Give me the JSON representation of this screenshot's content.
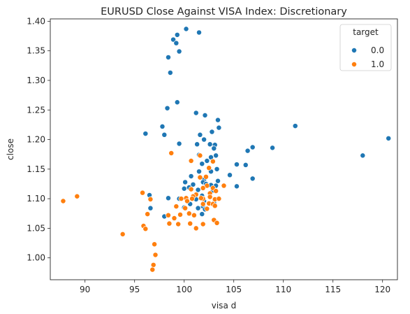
{
  "chart_data": {
    "type": "scatter",
    "title": "EURUSD Close Against VISA Index: Discretionary",
    "xlabel": "visa d",
    "ylabel": "close",
    "xlim": [
      86.5,
      121.5
    ],
    "ylim": [
      0.963,
      1.404
    ],
    "xticks": [
      90,
      95,
      100,
      105,
      110,
      115,
      120
    ],
    "yticks": [
      1.0,
      1.05,
      1.1,
      1.15,
      1.2,
      1.25,
      1.3,
      1.35,
      1.4
    ],
    "grid": false,
    "legend": {
      "title": "target",
      "position": "top-right"
    },
    "series": [
      {
        "name": "0.0",
        "color": "#1f77b4",
        "points": [
          [
            100.2,
            1.387
          ],
          [
            99.3,
            1.377
          ],
          [
            101.5,
            1.381
          ],
          [
            98.9,
            1.369
          ],
          [
            99.2,
            1.363
          ],
          [
            99.5,
            1.349
          ],
          [
            98.4,
            1.339
          ],
          [
            98.6,
            1.313
          ],
          [
            99.3,
            1.263
          ],
          [
            98.3,
            1.253
          ],
          [
            101.2,
            1.245
          ],
          [
            102.1,
            1.241
          ],
          [
            103.4,
            1.233
          ],
          [
            111.2,
            1.223
          ],
          [
            97.8,
            1.222
          ],
          [
            103.5,
            1.22
          ],
          [
            102.8,
            1.213
          ],
          [
            96.1,
            1.21
          ],
          [
            98.0,
            1.208
          ],
          [
            101.6,
            1.208
          ],
          [
            120.6,
            1.202
          ],
          [
            102.0,
            1.2
          ],
          [
            99.5,
            1.193
          ],
          [
            101.3,
            1.192
          ],
          [
            102.6,
            1.192
          ],
          [
            103.1,
            1.191
          ],
          [
            106.9,
            1.187
          ],
          [
            108.9,
            1.186
          ],
          [
            103.0,
            1.185
          ],
          [
            106.4,
            1.181
          ],
          [
            103.2,
            1.173
          ],
          [
            101.5,
            1.174
          ],
          [
            118.0,
            1.173
          ],
          [
            102.7,
            1.17
          ],
          [
            102.3,
            1.164
          ],
          [
            101.8,
            1.159
          ],
          [
            105.3,
            1.158
          ],
          [
            106.2,
            1.157
          ],
          [
            103.3,
            1.15
          ],
          [
            101.5,
            1.146
          ],
          [
            102.7,
            1.146
          ],
          [
            104.6,
            1.14
          ],
          [
            100.7,
            1.138
          ],
          [
            106.9,
            1.134
          ],
          [
            102.0,
            1.132
          ],
          [
            103.4,
            1.13
          ],
          [
            101.9,
            1.128
          ],
          [
            100.1,
            1.128
          ],
          [
            102.2,
            1.125
          ],
          [
            100.9,
            1.124
          ],
          [
            102.7,
            1.123
          ],
          [
            103.2,
            1.122
          ],
          [
            105.3,
            1.121
          ],
          [
            100.5,
            1.119
          ],
          [
            100.0,
            1.117
          ],
          [
            101.4,
            1.115
          ],
          [
            102.9,
            1.114
          ],
          [
            96.5,
            1.106
          ],
          [
            101.8,
            1.105
          ],
          [
            100.9,
            1.104
          ],
          [
            99.5,
            1.1
          ],
          [
            98.4,
            1.101
          ],
          [
            101.2,
            1.099
          ],
          [
            103.5,
            1.1
          ],
          [
            102.0,
            1.096
          ],
          [
            103.0,
            1.093
          ],
          [
            100.6,
            1.091
          ],
          [
            101.9,
            1.087
          ],
          [
            96.6,
            1.084
          ],
          [
            100.0,
            1.085
          ],
          [
            101.4,
            1.084
          ],
          [
            102.1,
            1.082
          ],
          [
            98.0,
            1.07
          ],
          [
            101.8,
            1.074
          ]
        ]
      },
      {
        "name": "1.0",
        "color": "#ff7f0e",
        "points": [
          [
            101.6,
            1.173
          ],
          [
            98.7,
            1.177
          ],
          [
            100.7,
            1.164
          ],
          [
            102.9,
            1.163
          ],
          [
            102.5,
            1.152
          ],
          [
            101.6,
            1.136
          ],
          [
            102.2,
            1.137
          ],
          [
            102.3,
            1.122
          ],
          [
            104.0,
            1.122
          ],
          [
            101.9,
            1.118
          ],
          [
            102.9,
            1.118
          ],
          [
            100.7,
            1.116
          ],
          [
            103.2,
            1.113
          ],
          [
            102.6,
            1.109
          ],
          [
            95.8,
            1.11
          ],
          [
            96.6,
            1.099
          ],
          [
            89.2,
            1.104
          ],
          [
            87.8,
            1.096
          ],
          [
            101.2,
            1.107
          ],
          [
            100.9,
            1.104
          ],
          [
            101.9,
            1.1
          ],
          [
            102.6,
            1.103
          ],
          [
            100.2,
            1.101
          ],
          [
            100.8,
            1.1
          ],
          [
            99.7,
            1.1
          ],
          [
            101.7,
            1.101
          ],
          [
            103.1,
            1.099
          ],
          [
            103.5,
            1.1
          ],
          [
            100.3,
            1.096
          ],
          [
            102.5,
            1.092
          ],
          [
            102.9,
            1.091
          ],
          [
            101.9,
            1.091
          ],
          [
            103.1,
            1.088
          ],
          [
            102.3,
            1.083
          ],
          [
            99.2,
            1.087
          ],
          [
            100.1,
            1.084
          ],
          [
            96.3,
            1.074
          ],
          [
            98.4,
            1.072
          ],
          [
            100.5,
            1.075
          ],
          [
            101.0,
            1.072
          ],
          [
            99.6,
            1.073
          ],
          [
            99.0,
            1.067
          ],
          [
            103.0,
            1.064
          ],
          [
            103.3,
            1.059
          ],
          [
            98.5,
            1.058
          ],
          [
            99.4,
            1.057
          ],
          [
            100.6,
            1.058
          ],
          [
            101.9,
            1.057
          ],
          [
            95.9,
            1.054
          ],
          [
            96.1,
            1.049
          ],
          [
            101.2,
            1.05
          ],
          [
            93.8,
            1.04
          ],
          [
            97.0,
            1.023
          ],
          [
            97.1,
            1.005
          ],
          [
            96.9,
            0.988
          ],
          [
            96.8,
            0.98
          ]
        ]
      }
    ]
  }
}
